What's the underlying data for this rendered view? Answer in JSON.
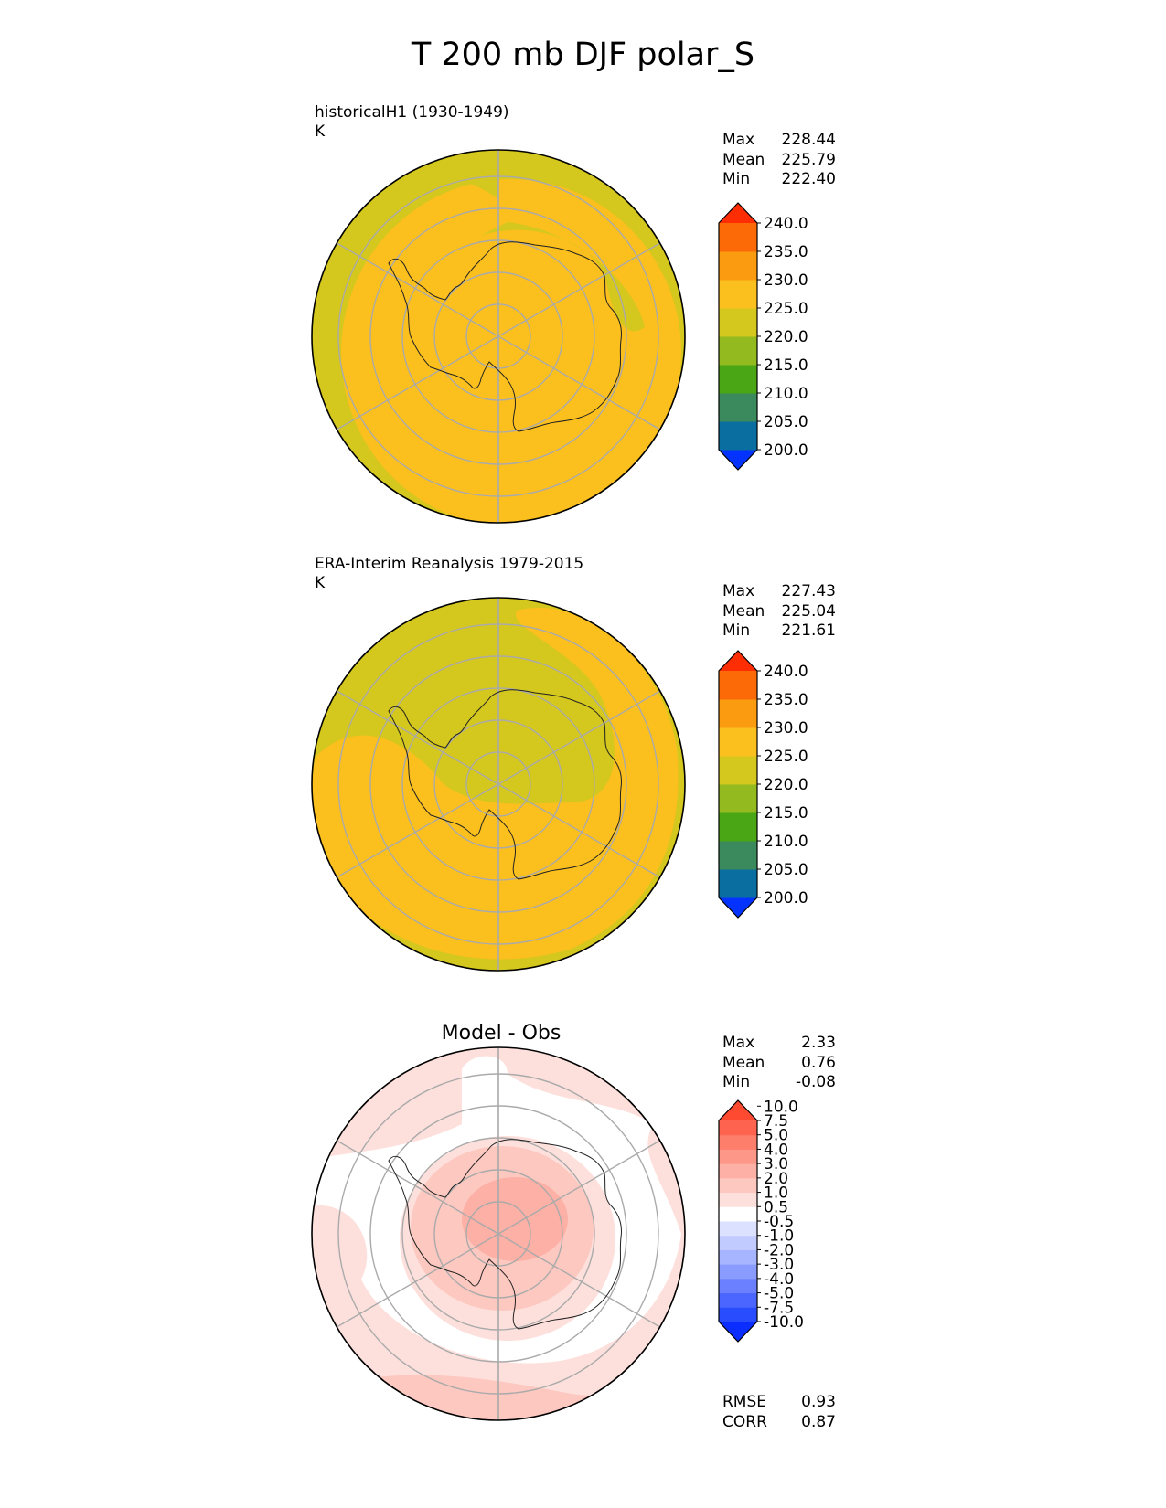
{
  "title": "T 200 mb DJF polar_S",
  "panels": [
    {
      "name": "test",
      "title_line1": "historicalH1 (1930-1949)",
      "title_line2": "K",
      "stats": [
        {
          "label": "Max",
          "value": "228.44"
        },
        {
          "label": "Mean",
          "value": "225.79"
        },
        {
          "label": "Min",
          "value": "222.40"
        }
      ],
      "colorbar": {
        "colors": [
          "#0433ff",
          "#0a6ea0",
          "#3a8a5e",
          "#4aa614",
          "#93ba1e",
          "#d4c71d",
          "#fbbf1e",
          "#fb9b10",
          "#fb6a06",
          "#ff2d04"
        ],
        "labels": [
          "200.0",
          "205.0",
          "210.0",
          "215.0",
          "220.0",
          "225.0",
          "230.0",
          "235.0",
          "240.0"
        ]
      }
    },
    {
      "name": "reference",
      "title_line1": "ERA-Interim Reanalysis 1979-2015",
      "title_line2": "K",
      "stats": [
        {
          "label": "Max",
          "value": "227.43"
        },
        {
          "label": "Mean",
          "value": "225.04"
        },
        {
          "label": "Min",
          "value": "221.61"
        }
      ],
      "colorbar": {
        "colors": [
          "#0433ff",
          "#0a6ea0",
          "#3a8a5e",
          "#4aa614",
          "#93ba1e",
          "#d4c71d",
          "#fbbf1e",
          "#fb9b10",
          "#fb6a06",
          "#ff2d04"
        ],
        "labels": [
          "200.0",
          "205.0",
          "210.0",
          "215.0",
          "220.0",
          "225.0",
          "230.0",
          "235.0",
          "240.0"
        ]
      }
    },
    {
      "name": "difference",
      "title": "Model - Obs",
      "stats": [
        {
          "label": "Max",
          "value": "2.33"
        },
        {
          "label": "Mean",
          "value": "0.76"
        },
        {
          "label": "Min",
          "value": "-0.08"
        }
      ],
      "metrics": [
        {
          "label": "RMSE",
          "value": "0.93"
        },
        {
          "label": "CORR",
          "value": "0.87"
        }
      ],
      "colorbar": {
        "colors": [
          "#0b2dff",
          "#2a4cff",
          "#4a66ff",
          "#6a80ff",
          "#8a9bff",
          "#a7b4ff",
          "#c2cbff",
          "#dbe1ff",
          "#ffffff",
          "#fde0dc",
          "#fdc8c0",
          "#fdb0a5",
          "#fd9888",
          "#fd7e6b",
          "#fd634e",
          "#fd4a30"
        ],
        "labels": [
          "-10.0",
          "-7.5",
          "-5.0",
          "-4.0",
          "-3.0",
          "-2.0",
          "-1.0",
          "-0.5",
          "0.5",
          "1.0",
          "2.0",
          "3.0",
          "4.0",
          "5.0",
          "7.5",
          "10.0"
        ]
      }
    }
  ],
  "chart_data": [
    {
      "type": "heatmap",
      "projection": "polar_S",
      "title": "historicalH1 (1930-1949)",
      "units": "K",
      "max": 228.44,
      "mean": 225.79,
      "min": 222.4,
      "levels": [
        200,
        205,
        210,
        215,
        220,
        225,
        230,
        235,
        240
      ]
    },
    {
      "type": "heatmap",
      "projection": "polar_S",
      "title": "ERA-Interim Reanalysis 1979-2015",
      "units": "K",
      "max": 227.43,
      "mean": 225.04,
      "min": 221.61,
      "levels": [
        200,
        205,
        210,
        215,
        220,
        225,
        230,
        235,
        240
      ]
    },
    {
      "type": "heatmap",
      "projection": "polar_S",
      "title": "Model - Obs",
      "max": 2.33,
      "mean": 0.76,
      "min": -0.08,
      "rmse": 0.93,
      "corr": 0.87,
      "levels": [
        -10.0,
        -7.5,
        -5.0,
        -4.0,
        -3.0,
        -2.0,
        -1.0,
        -0.5,
        0.5,
        1.0,
        2.0,
        3.0,
        4.0,
        5.0,
        7.5,
        10.0
      ]
    }
  ]
}
